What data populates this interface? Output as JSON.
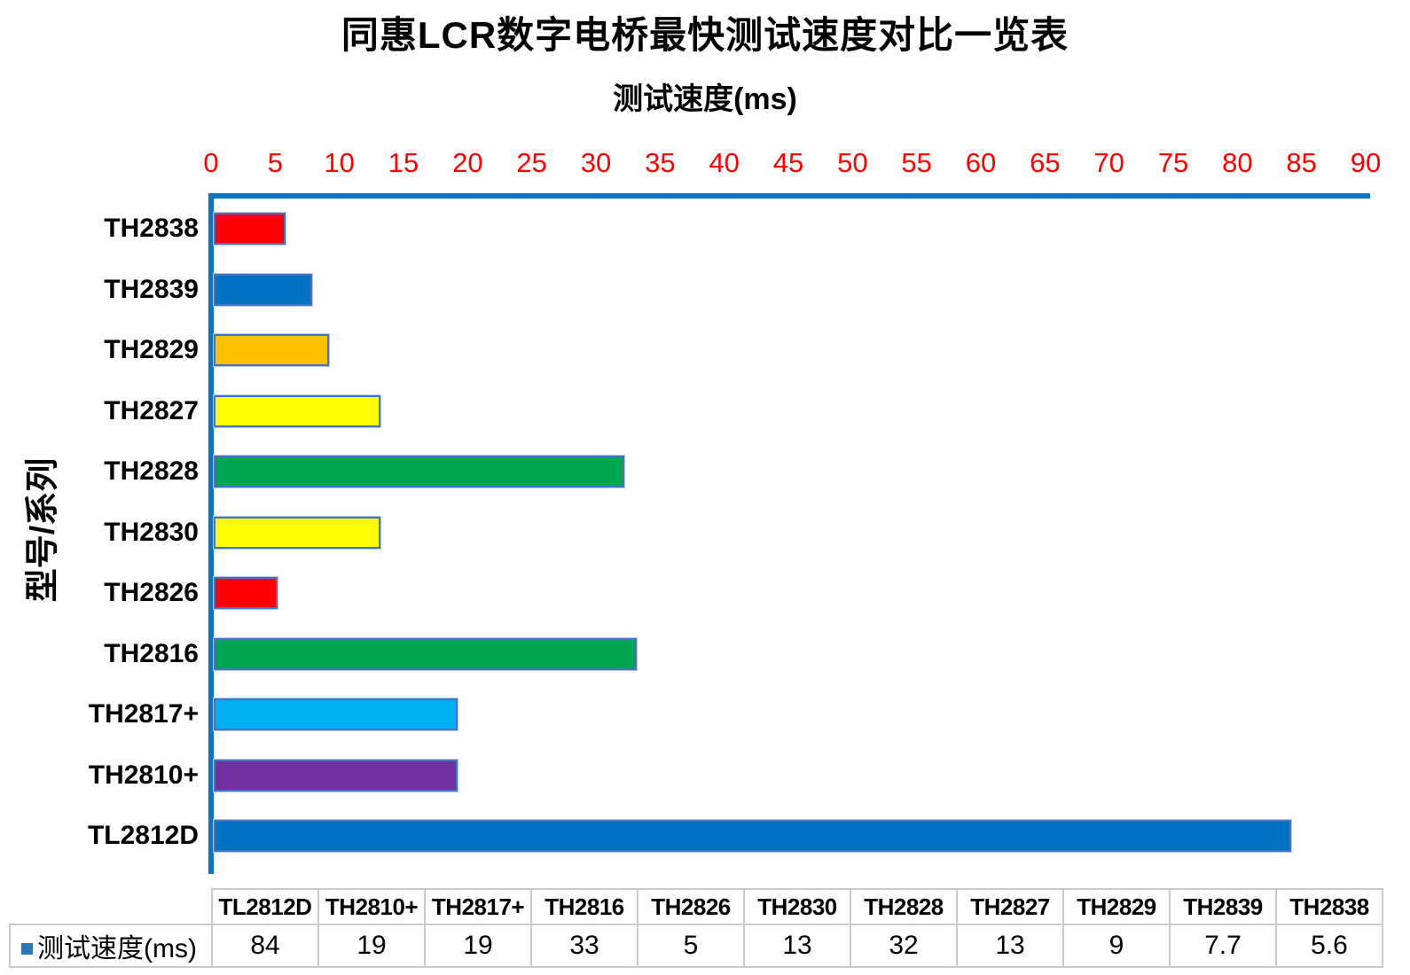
{
  "title": "同惠LCR数字电桥最快测试速度对比一览表",
  "chart_data": {
    "type": "bar",
    "orientation": "horizontal",
    "title": "同惠LCR数字电桥最快测试速度对比一览表",
    "xlabel": "测试速度(ms)",
    "ylabel": "型号/系列",
    "xlim": [
      0,
      90
    ],
    "tick_step": 5,
    "grid": false,
    "legend_position": "bottom-table",
    "series_label": "测试速度(ms)",
    "ticks": [
      0,
      5,
      10,
      15,
      20,
      25,
      30,
      35,
      40,
      45,
      50,
      55,
      60,
      65,
      70,
      75,
      80,
      85,
      90
    ],
    "categories": [
      "TH2838",
      "TH2839",
      "TH2829",
      "TH2827",
      "TH2828",
      "TH2830",
      "TH2826",
      "TH2816",
      "TH2817+",
      "TH2810+",
      "TL2812D"
    ],
    "values": [
      5.6,
      7.7,
      9,
      13,
      32,
      13,
      5,
      33,
      19,
      19,
      84
    ],
    "bar_colors": [
      "#FF0000",
      "#0070C0",
      "#FFC000",
      "#FFFF00",
      "#00A651",
      "#FFFF00",
      "#FF0000",
      "#00A651",
      "#00B0F0",
      "#7030A0",
      "#0070C0"
    ]
  },
  "table": {
    "headers": [
      "TL2812D",
      "TH2810+",
      "TH2817+",
      "TH2816",
      "TH2826",
      "TH2830",
      "TH2828",
      "TH2827",
      "TH2829",
      "TH2839",
      "TH2838"
    ],
    "row_label": "测试速度(ms)",
    "values": [
      "84",
      "19",
      "19",
      "33",
      "5",
      "13",
      "32",
      "13",
      "9",
      "7.7",
      "5.6"
    ]
  },
  "colors": {
    "axis_line": "#0B74C4",
    "tick_label": "#FF0000",
    "bar_border": "#4472C4",
    "bar_halo": "#B4C7E7",
    "table_border": "#C9C9C9",
    "legend_marker": "#2E75B6",
    "text": "#000000"
  }
}
